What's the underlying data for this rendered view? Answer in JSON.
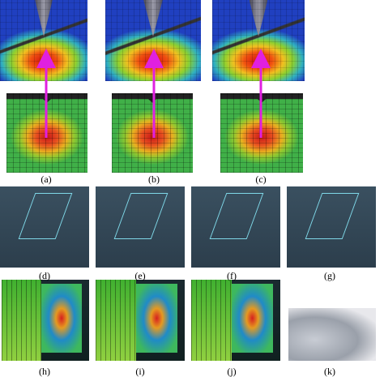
{
  "panels": [
    {
      "label": "(a)"
    },
    {
      "label": "(b)"
    },
    {
      "label": "(c)"
    },
    {
      "label": "(d)"
    },
    {
      "label": "(e)"
    },
    {
      "label": "(f)"
    },
    {
      "label": "(g)"
    },
    {
      "label": "(h)"
    },
    {
      "label": "(i)"
    },
    {
      "label": "(j)"
    },
    {
      "label": "(k)"
    }
  ]
}
